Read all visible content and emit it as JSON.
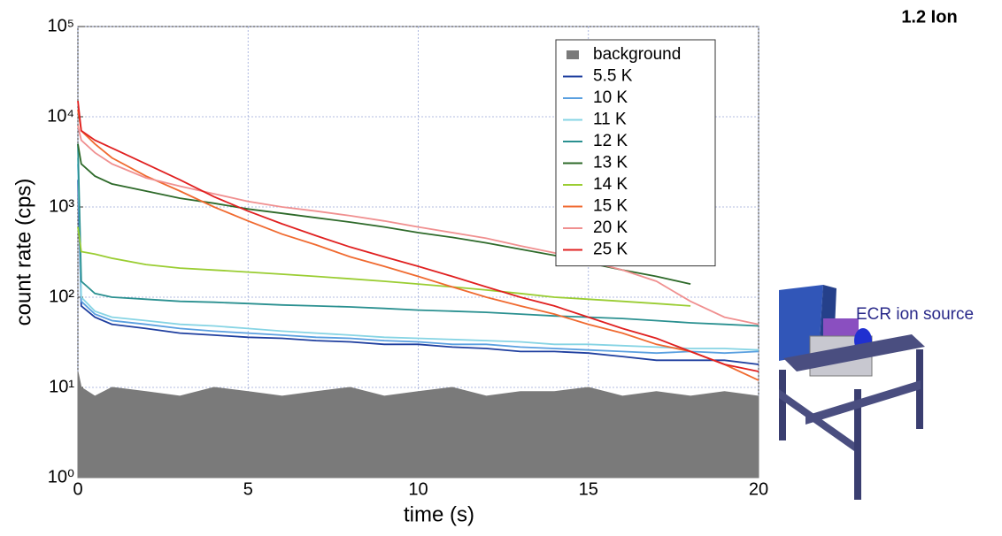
{
  "chart_data": {
    "type": "line",
    "xlabel": "time (s)",
    "ylabel": "count rate (cps)",
    "x": [
      0,
      0.1,
      0.5,
      1,
      2,
      3,
      4,
      5,
      6,
      7,
      8,
      9,
      10,
      11,
      12,
      13,
      14,
      15,
      16,
      17,
      18,
      19,
      20
    ],
    "series": [
      {
        "name": "background",
        "color": "#7a7a7a",
        "style": "area",
        "values": [
          15,
          10,
          8,
          10,
          9,
          8,
          10,
          9,
          8,
          9,
          10,
          8,
          9,
          10,
          8,
          9,
          9,
          10,
          8,
          9,
          8,
          9,
          8
        ]
      },
      {
        "name": "5.5 K",
        "color": "#1f3f9f",
        "values": [
          2000,
          80,
          60,
          50,
          45,
          40,
          38,
          36,
          35,
          33,
          32,
          30,
          30,
          28,
          27,
          25,
          25,
          24,
          22,
          20,
          20,
          20,
          18
        ]
      },
      {
        "name": "10 K",
        "color": "#5aa0e0",
        "values": [
          3000,
          90,
          65,
          55,
          50,
          45,
          42,
          40,
          38,
          36,
          35,
          33,
          32,
          30,
          30,
          28,
          27,
          26,
          25,
          24,
          25,
          24,
          25
        ]
      },
      {
        "name": "11 K",
        "color": "#86d4e4",
        "values": [
          3500,
          100,
          70,
          60,
          55,
          50,
          48,
          45,
          42,
          40,
          38,
          36,
          35,
          34,
          33,
          32,
          30,
          30,
          29,
          28,
          27,
          27,
          26
        ]
      },
      {
        "name": "12 K",
        "color": "#2a9090",
        "values": [
          5000,
          150,
          110,
          100,
          95,
          90,
          88,
          85,
          82,
          80,
          78,
          75,
          72,
          70,
          68,
          65,
          62,
          60,
          58,
          55,
          52,
          50,
          48
        ]
      },
      {
        "name": "13 K",
        "color": "#2e6a2a",
        "values": [
          5000,
          3000,
          2200,
          1800,
          1500,
          1250,
          1100,
          950,
          850,
          760,
          680,
          600,
          520,
          460,
          400,
          340,
          290,
          240,
          200,
          170,
          140,
          null,
          null
        ]
      },
      {
        "name": "14 K",
        "color": "#9acd32",
        "values": [
          600,
          320,
          300,
          270,
          230,
          210,
          200,
          190,
          180,
          170,
          160,
          150,
          140,
          130,
          120,
          110,
          100,
          95,
          90,
          85,
          80,
          null,
          null
        ]
      },
      {
        "name": "15 K",
        "color": "#f06a30",
        "values": [
          12000,
          7000,
          5000,
          3500,
          2200,
          1500,
          1000,
          700,
          500,
          380,
          280,
          220,
          170,
          130,
          100,
          80,
          65,
          50,
          40,
          30,
          25,
          18,
          12
        ]
      },
      {
        "name": "20 K",
        "color": "#f09090",
        "values": [
          8000,
          5500,
          4000,
          3000,
          2100,
          1700,
          1400,
          1150,
          1000,
          900,
          800,
          700,
          600,
          520,
          450,
          370,
          310,
          250,
          200,
          150,
          90,
          60,
          50
        ]
      },
      {
        "name": "25 K",
        "color": "#e02020",
        "values": [
          15000,
          7000,
          5500,
          4500,
          3000,
          2000,
          1300,
          900,
          650,
          480,
          360,
          280,
          220,
          170,
          130,
          100,
          80,
          60,
          45,
          35,
          25,
          18,
          15
        ]
      }
    ],
    "xlim": [
      0,
      20
    ],
    "xticks": [
      0,
      5,
      10,
      15,
      20
    ],
    "ylim": [
      1,
      100000
    ],
    "log_y": true,
    "yticks": [
      {
        "value": 1,
        "label": "10⁰"
      },
      {
        "value": 10,
        "label": "10¹"
      },
      {
        "value": 100,
        "label": "10²"
      },
      {
        "value": 1000,
        "label": "10³"
      },
      {
        "value": 10000,
        "label": "10⁴"
      },
      {
        "value": 100000,
        "label": "10⁵"
      }
    ],
    "grid": true,
    "legend": "upper right"
  },
  "header": {
    "title": "1.2 Ion"
  },
  "annotation": "ECR ion source"
}
